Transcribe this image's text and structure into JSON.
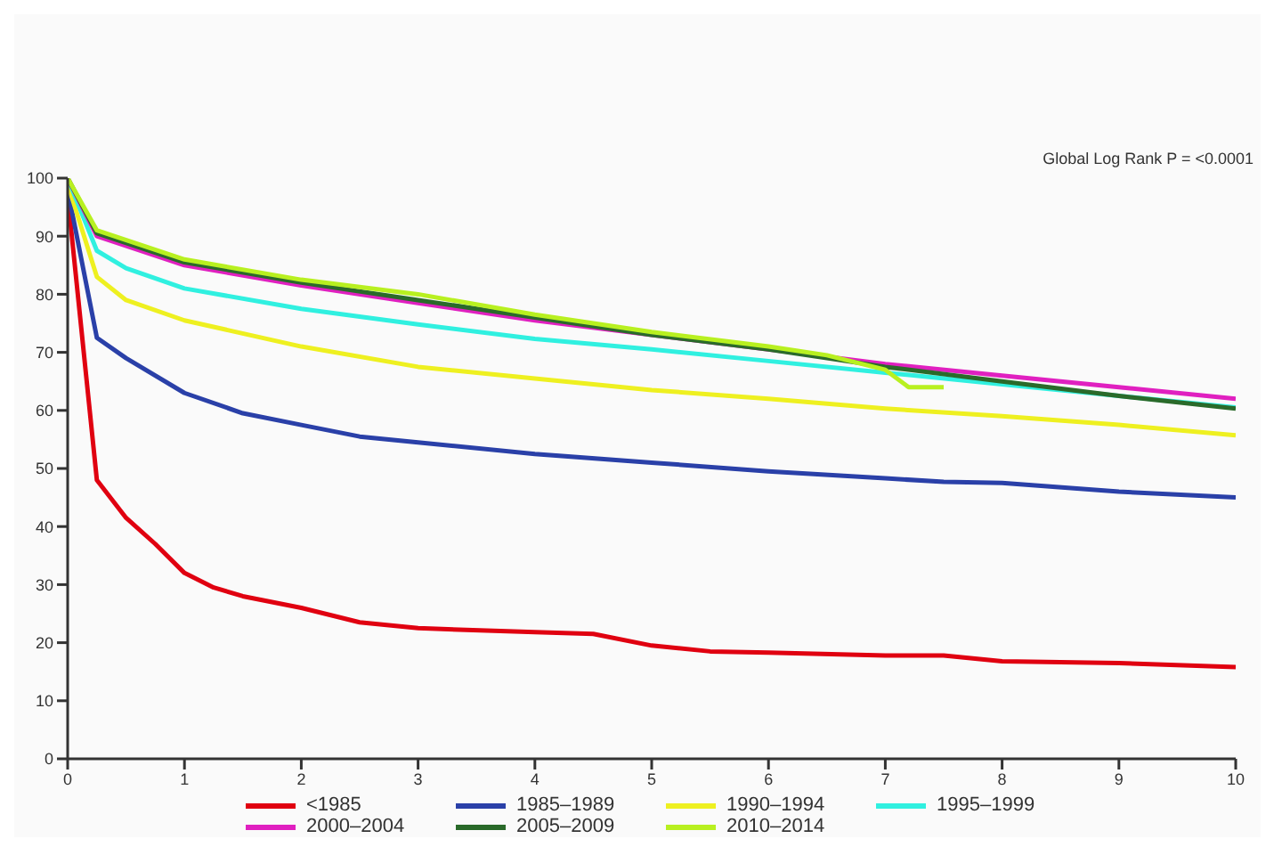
{
  "chart_data": {
    "type": "line",
    "annotations": [
      "Global Log Rank P = <0.0001"
    ],
    "xlim": [
      0,
      10
    ],
    "xticks": [
      0,
      1,
      2,
      3,
      4,
      5,
      6,
      7,
      8,
      9,
      10
    ],
    "ylim": [
      0,
      100
    ],
    "yticks": [
      0,
      10,
      20,
      30,
      40,
      50,
      60,
      70,
      80,
      90,
      100
    ],
    "grid": false,
    "legend": "bottom",
    "marker": "none",
    "series": [
      {
        "name": "<1985",
        "color": "#e00010",
        "x": [
          0,
          0.25,
          0.5,
          0.75,
          1,
          1.25,
          1.5,
          2,
          2.5,
          3,
          4,
          4.5,
          5,
          5.5,
          6,
          7,
          7.5,
          8,
          9,
          10
        ],
        "values": [
          97,
          48,
          41.5,
          37,
          32,
          29.5,
          28,
          26,
          23.5,
          22.5,
          21.8,
          21.5,
          19.5,
          18.5,
          18.3,
          17.8,
          17.8,
          16.8,
          16.5,
          15.8
        ]
      },
      {
        "name": "1985–1989",
        "color": "#2a40a8",
        "x": [
          0,
          0.25,
          0.5,
          1,
          1.5,
          2,
          2.5,
          3,
          4,
          5,
          6,
          7,
          7.5,
          8,
          9,
          10
        ],
        "values": [
          98,
          72.5,
          69,
          63,
          59.5,
          57.5,
          55.5,
          54.5,
          52.5,
          51,
          49.5,
          48.3,
          47.7,
          47.5,
          46,
          45
        ]
      },
      {
        "name": "1990–1994",
        "color": "#eef020",
        "x": [
          0,
          0.25,
          0.5,
          1,
          2,
          3,
          4,
          5,
          6,
          7,
          8,
          9,
          10
        ],
        "values": [
          99,
          83,
          79,
          75.5,
          71,
          67.5,
          65.5,
          63.5,
          62,
          60.3,
          59,
          57.5,
          55.7
        ]
      },
      {
        "name": "1995–1999",
        "color": "#30f0e0",
        "x": [
          0,
          0.25,
          0.5,
          1,
          2,
          3,
          4,
          5,
          6,
          7,
          8,
          9,
          10
        ],
        "values": [
          100,
          87.5,
          84.5,
          81,
          77.5,
          74.8,
          72.3,
          70.5,
          68.5,
          66.5,
          64.5,
          62.5,
          60.5
        ]
      },
      {
        "name": "2000–2004",
        "color": "#e020c0",
        "x": [
          0,
          0.25,
          1,
          2,
          3,
          4,
          5,
          6,
          7,
          8,
          9,
          10
        ],
        "values": [
          100,
          90,
          85,
          81.5,
          78.5,
          75.5,
          73,
          70.5,
          68,
          66,
          64,
          62
        ]
      },
      {
        "name": "2005–2009",
        "color": "#2a6a2a",
        "x": [
          0,
          0.25,
          1,
          2,
          3,
          4,
          5,
          6,
          7,
          8,
          9,
          10
        ],
        "values": [
          100,
          90.5,
          85.5,
          82,
          79,
          76,
          73,
          70.5,
          67.5,
          65,
          62.5,
          60.3
        ]
      },
      {
        "name": "2010–2014",
        "color": "#b8f020",
        "x": [
          0,
          0.25,
          1,
          2,
          3,
          4,
          5,
          6,
          6.5,
          7,
          7.2,
          7.5
        ],
        "values": [
          100,
          91,
          86,
          82.5,
          80,
          76.5,
          73.5,
          71,
          69.5,
          67,
          64,
          64
        ]
      }
    ]
  }
}
